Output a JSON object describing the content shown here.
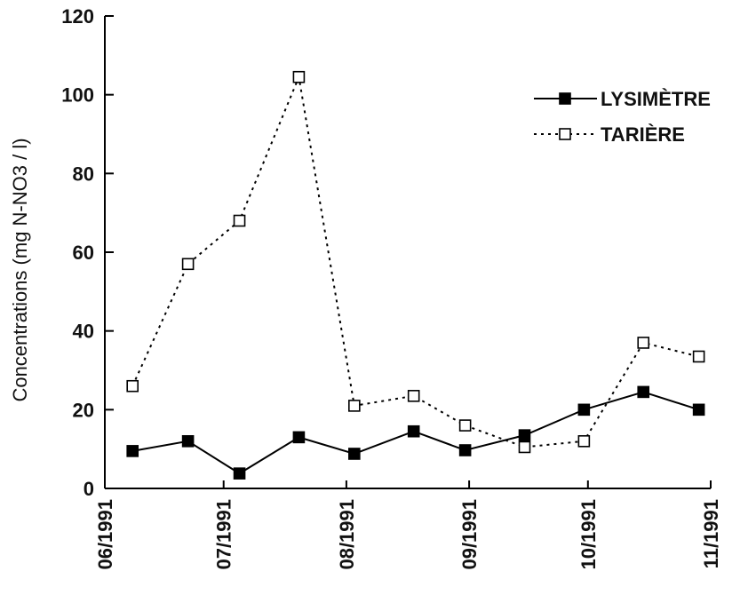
{
  "chart_data": {
    "type": "line",
    "ylabel": "Concentrations (mg N-NO3 / l)",
    "xlabel": "",
    "ylim": [
      0,
      120
    ],
    "y_ticks": [
      0,
      20,
      40,
      60,
      80,
      100,
      120
    ],
    "x_ticks": [
      "06/1991",
      "07/1991",
      "08/1991",
      "09/1991",
      "10/1991",
      "11/1991"
    ],
    "xlim": [
      "1991-06-01",
      "1991-11-01"
    ],
    "grid": false,
    "legend_position": "top-right",
    "series": [
      {
        "name": "LYSIMÈTRE",
        "style": "solid",
        "marker": "filled-square",
        "color": "#000000",
        "points": [
          {
            "x": "1991-06-08",
            "y": 9.5
          },
          {
            "x": "1991-06-22",
            "y": 12
          },
          {
            "x": "1991-07-05",
            "y": 3.8
          },
          {
            "x": "1991-07-20",
            "y": 13
          },
          {
            "x": "1991-08-03",
            "y": 8.8
          },
          {
            "x": "1991-08-18",
            "y": 14.5
          },
          {
            "x": "1991-08-31",
            "y": 9.7
          },
          {
            "x": "1991-09-15",
            "y": 13.5
          },
          {
            "x": "1991-09-30",
            "y": 20
          },
          {
            "x": "1991-10-15",
            "y": 24.5
          },
          {
            "x": "1991-10-29",
            "y": 20
          }
        ]
      },
      {
        "name": "TARIÈRE",
        "style": "dotted",
        "marker": "open-square",
        "color": "#000000",
        "points": [
          {
            "x": "1991-06-08",
            "y": 26
          },
          {
            "x": "1991-06-22",
            "y": 57
          },
          {
            "x": "1991-07-05",
            "y": 68
          },
          {
            "x": "1991-07-20",
            "y": 104.5
          },
          {
            "x": "1991-08-03",
            "y": 21
          },
          {
            "x": "1991-08-18",
            "y": 23.5
          },
          {
            "x": "1991-08-31",
            "y": 16
          },
          {
            "x": "1991-09-15",
            "y": 10.5
          },
          {
            "x": "1991-09-30",
            "y": 12
          },
          {
            "x": "1991-10-15",
            "y": 37
          },
          {
            "x": "1991-10-29",
            "y": 33.5
          }
        ]
      }
    ]
  }
}
